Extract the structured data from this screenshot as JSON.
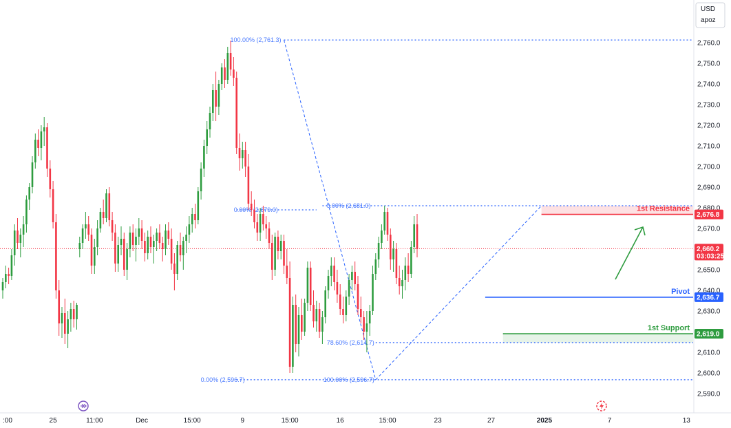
{
  "currency": "USD",
  "currency_sub": "apoz",
  "chart_data": {
    "type": "candlestick",
    "ylim": [
      2585,
      2766
    ],
    "yticks": [
      2590,
      2600,
      2610,
      2620,
      2630,
      2640,
      2650,
      2660,
      2670,
      2680,
      2690,
      2700,
      2710,
      2720,
      2730,
      2740,
      2750,
      2760
    ],
    "ytick_labels": [
      "2,590.0",
      "2,600.0",
      "2,610.0",
      "2,620.0",
      "2,630.0",
      "2,640.0",
      "2,650.0",
      "2,660.0",
      "2,670.0",
      "2,680.0",
      "2,690.0",
      "2,700.0",
      "2,710.0",
      "2,720.0",
      "2,730.0",
      "2,740.0",
      "2,750.0",
      "2,760.0"
    ],
    "x_labels": [
      {
        "label": ":00",
        "i": 0
      },
      {
        "label": "25",
        "i": 17
      },
      {
        "label": "11:00",
        "i": 31
      },
      {
        "label": "Dec",
        "i": 47
      },
      {
        "label": "15:00",
        "i": 64
      },
      {
        "label": "9",
        "i": 81
      },
      {
        "label": "15:00",
        "i": 97
      },
      {
        "label": "16",
        "i": 114
      },
      {
        "label": "15:00",
        "i": 130
      },
      {
        "label": "23",
        "i": 147
      },
      {
        "label": "27",
        "i": 165
      },
      {
        "label": "2025",
        "i": 183
      },
      {
        "label": "7",
        "i": 205
      },
      {
        "label": "13",
        "i": 231
      }
    ],
    "candles": [
      [
        2640,
        2646,
        2636,
        2644
      ],
      [
        2644,
        2652,
        2641,
        2648
      ],
      [
        2648,
        2651,
        2643,
        2647
      ],
      [
        2647,
        2660,
        2645,
        2657
      ],
      [
        2657,
        2672,
        2652,
        2669
      ],
      [
        2669,
        2675,
        2660,
        2663
      ],
      [
        2663,
        2670,
        2656,
        2667
      ],
      [
        2667,
        2676,
        2661,
        2672
      ],
      [
        2672,
        2686,
        2668,
        2684
      ],
      [
        2684,
        2692,
        2679,
        2690
      ],
      [
        2690,
        2705,
        2687,
        2702
      ],
      [
        2702,
        2716,
        2699,
        2713
      ],
      [
        2713,
        2718,
        2705,
        2709
      ],
      [
        2709,
        2720,
        2703,
        2717
      ],
      [
        2717,
        2724,
        2710,
        2719
      ],
      [
        2719,
        2721,
        2695,
        2699
      ],
      [
        2699,
        2703,
        2685,
        2689
      ],
      [
        2689,
        2693,
        2670,
        2673
      ],
      [
        2673,
        2677,
        2636,
        2640
      ],
      [
        2640,
        2645,
        2618,
        2624
      ],
      [
        2624,
        2632,
        2617,
        2629
      ],
      [
        2629,
        2636,
        2614,
        2619
      ],
      [
        2619,
        2630,
        2612,
        2626
      ],
      [
        2626,
        2634,
        2620,
        2631
      ],
      [
        2631,
        2635,
        2622,
        2626
      ],
      [
        2626,
        2634,
        2621,
        2633
      ],
      [
        2660,
        2666,
        2656,
        2663
      ],
      [
        2663,
        2672,
        2660,
        2670
      ],
      [
        2670,
        2678,
        2665,
        2672
      ],
      [
        2672,
        2676,
        2664,
        2667
      ],
      [
        2667,
        2670,
        2648,
        2652
      ],
      [
        2652,
        2665,
        2648,
        2661
      ],
      [
        2661,
        2674,
        2657,
        2670
      ],
      [
        2670,
        2680,
        2668,
        2678
      ],
      [
        2678,
        2684,
        2672,
        2675
      ],
      [
        2675,
        2689,
        2673,
        2687
      ],
      [
        2687,
        2690,
        2671,
        2674
      ],
      [
        2674,
        2678,
        2664,
        2668
      ],
      [
        2668,
        2672,
        2649,
        2653
      ],
      [
        2653,
        2666,
        2649,
        2662
      ],
      [
        2662,
        2671,
        2657,
        2665
      ],
      [
        2665,
        2668,
        2647,
        2650
      ],
      [
        2650,
        2663,
        2645,
        2660
      ],
      [
        2660,
        2671,
        2656,
        2668
      ],
      [
        2668,
        2672,
        2659,
        2662
      ],
      [
        2662,
        2670,
        2654,
        2666
      ],
      [
        2666,
        2675,
        2662,
        2670
      ],
      [
        2670,
        2674,
        2660,
        2664
      ],
      [
        2664,
        2668,
        2654,
        2658
      ],
      [
        2658,
        2669,
        2655,
        2666
      ],
      [
        2666,
        2671,
        2658,
        2661
      ],
      [
        2661,
        2667,
        2653,
        2664
      ],
      [
        2664,
        2670,
        2659,
        2668
      ],
      [
        2668,
        2672,
        2660,
        2663
      ],
      [
        2663,
        2666,
        2654,
        2660
      ],
      [
        2660,
        2672,
        2657,
        2669
      ],
      [
        2669,
        2673,
        2662,
        2665
      ],
      [
        2665,
        2670,
        2650,
        2653
      ],
      [
        2653,
        2658,
        2640,
        2648
      ],
      [
        2648,
        2664,
        2645,
        2662
      ],
      [
        2662,
        2668,
        2654,
        2657
      ],
      [
        2657,
        2666,
        2650,
        2664
      ],
      [
        2664,
        2671,
        2658,
        2667
      ],
      [
        2667,
        2676,
        2663,
        2672
      ],
      [
        2672,
        2680,
        2668,
        2677
      ],
      [
        2677,
        2682,
        2670,
        2674
      ],
      [
        2674,
        2690,
        2672,
        2688
      ],
      [
        2688,
        2702,
        2684,
        2699
      ],
      [
        2699,
        2713,
        2695,
        2710
      ],
      [
        2710,
        2722,
        2706,
        2718
      ],
      [
        2718,
        2729,
        2714,
        2726
      ],
      [
        2726,
        2740,
        2722,
        2737
      ],
      [
        2737,
        2746,
        2722,
        2729
      ],
      [
        2729,
        2742,
        2725,
        2740
      ],
      [
        2740,
        2750,
        2737,
        2748
      ],
      [
        2748,
        2752,
        2738,
        2742
      ],
      [
        2742,
        2758,
        2740,
        2755
      ],
      [
        2755,
        2761,
        2744,
        2747
      ],
      [
        2747,
        2753,
        2739,
        2743
      ],
      [
        2743,
        2746,
        2706,
        2709
      ],
      [
        2709,
        2716,
        2698,
        2704
      ],
      [
        2704,
        2712,
        2699,
        2708
      ],
      [
        2708,
        2712,
        2695,
        2700
      ],
      [
        2700,
        2706,
        2679,
        2682
      ],
      [
        2682,
        2688,
        2676,
        2679
      ],
      [
        2679,
        2684,
        2670,
        2673
      ],
      [
        2673,
        2677,
        2664,
        2668
      ],
      [
        2668,
        2680,
        2664,
        2677
      ],
      [
        2677,
        2681,
        2669,
        2672
      ],
      [
        2672,
        2676,
        2665,
        2670
      ],
      [
        2670,
        2673,
        2660,
        2663
      ],
      [
        2663,
        2667,
        2645,
        2650
      ],
      [
        2650,
        2668,
        2647,
        2666
      ],
      [
        2666,
        2669,
        2655,
        2659
      ],
      [
        2659,
        2667,
        2655,
        2664
      ],
      [
        2664,
        2667,
        2648,
        2652
      ],
      [
        2652,
        2660,
        2643,
        2646
      ],
      [
        2646,
        2654,
        2600,
        2603
      ],
      [
        2603,
        2637,
        2600,
        2633
      ],
      [
        2633,
        2638,
        2610,
        2614
      ],
      [
        2614,
        2632,
        2608,
        2628
      ],
      [
        2628,
        2636,
        2616,
        2620
      ],
      [
        2620,
        2636,
        2618,
        2634
      ],
      [
        2634,
        2654,
        2630,
        2651
      ],
      [
        2651,
        2654,
        2630,
        2633
      ],
      [
        2633,
        2640,
        2622,
        2625
      ],
      [
        2625,
        2635,
        2620,
        2631
      ],
      [
        2631,
        2634,
        2617,
        2620
      ],
      [
        2620,
        2630,
        2614,
        2627
      ],
      [
        2627,
        2642,
        2624,
        2640
      ],
      [
        2640,
        2650,
        2636,
        2647
      ],
      [
        2647,
        2656,
        2642,
        2652
      ],
      [
        2652,
        2656,
        2640,
        2644
      ],
      [
        2644,
        2650,
        2634,
        2638
      ],
      [
        2638,
        2643,
        2628,
        2631
      ],
      [
        2631,
        2637,
        2624,
        2628
      ],
      [
        2628,
        2640,
        2625,
        2637
      ],
      [
        2637,
        2648,
        2633,
        2645
      ],
      [
        2645,
        2652,
        2640,
        2649
      ],
      [
        2649,
        2654,
        2640,
        2643
      ],
      [
        2643,
        2647,
        2628,
        2631
      ],
      [
        2631,
        2637,
        2624,
        2627
      ],
      [
        2627,
        2630,
        2616,
        2620
      ],
      [
        2620,
        2630,
        2610,
        2624
      ],
      [
        2624,
        2633,
        2618,
        2630
      ],
      [
        2630,
        2652,
        2628,
        2648
      ],
      [
        2648,
        2658,
        2645,
        2655
      ],
      [
        2655,
        2666,
        2651,
        2663
      ],
      [
        2663,
        2672,
        2660,
        2669
      ],
      [
        2669,
        2681,
        2667,
        2678
      ],
      [
        2678,
        2680,
        2664,
        2667
      ],
      [
        2667,
        2670,
        2650,
        2655
      ],
      [
        2655,
        2664,
        2649,
        2660
      ],
      [
        2660,
        2663,
        2643,
        2646
      ],
      [
        2646,
        2652,
        2638,
        2642
      ],
      [
        2642,
        2650,
        2636,
        2645
      ],
      [
        2645,
        2656,
        2640,
        2652
      ],
      [
        2652,
        2658,
        2644,
        2648
      ],
      [
        2648,
        2664,
        2646,
        2661
      ],
      [
        2661,
        2676,
        2658,
        2672
      ],
      [
        2672,
        2677,
        2656,
        2660
      ]
    ],
    "annotations": [
      {
        "text": "100.00% (2,761.3)",
        "value": 2761.3
      },
      {
        "text": "0.00% (2,679.0)",
        "value": 2679.0
      },
      {
        "text": "0.00% (2,681.0)",
        "value": 2681.0
      },
      {
        "text": "78.60% (2,614.7)",
        "value": 2614.7
      },
      {
        "text": "0.00% (2,596.7)",
        "value": 2596.7
      },
      {
        "text": "100.00% (2,596.7)",
        "value": 2596.7
      }
    ],
    "levels": [
      {
        "name": "1st Resistance",
        "value": 2676.8,
        "tag": "2,676.8",
        "color": "#f23645"
      },
      {
        "name": "Pivot",
        "value": 2636.7,
        "tag": "2,636.7",
        "color": "#2962ff"
      },
      {
        "name": "1st Support",
        "value": 2619.0,
        "tag": "2,619.0",
        "color": "#2e9c3f"
      }
    ],
    "current": {
      "value": 2660.2,
      "tag": "2,660.2",
      "countdown": "03:03:25",
      "color": "#f23645"
    },
    "colors": {
      "up": "#2e9c3f",
      "down": "#f23645",
      "fib": "#2962ff"
    }
  }
}
